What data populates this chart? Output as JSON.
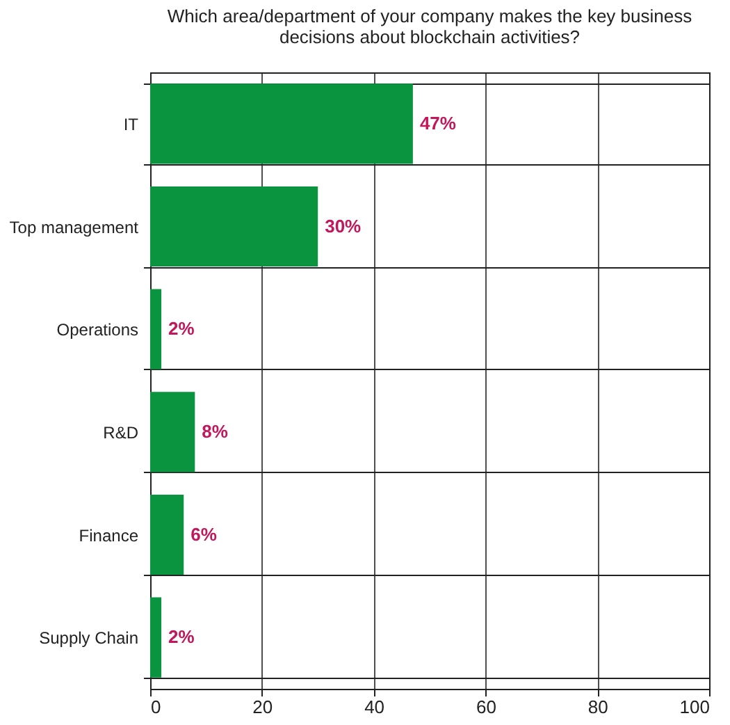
{
  "chart_data": {
    "type": "bar",
    "orientation": "horizontal",
    "title": "Which area/department of your company makes the key business\ndecisions about blockchain activities?",
    "categories": [
      "IT",
      "Top management",
      "Operations",
      "R&D",
      "Finance",
      "Supply Chain"
    ],
    "values": [
      47,
      30,
      2,
      8,
      6,
      2
    ],
    "value_labels": [
      "47%",
      "30%",
      "2%",
      "8%",
      "6%",
      "2%"
    ],
    "color": "#0b9440",
    "xlim": [
      0,
      100
    ],
    "xticks": [
      0,
      20,
      40,
      60,
      80,
      100
    ],
    "grid": true
  }
}
